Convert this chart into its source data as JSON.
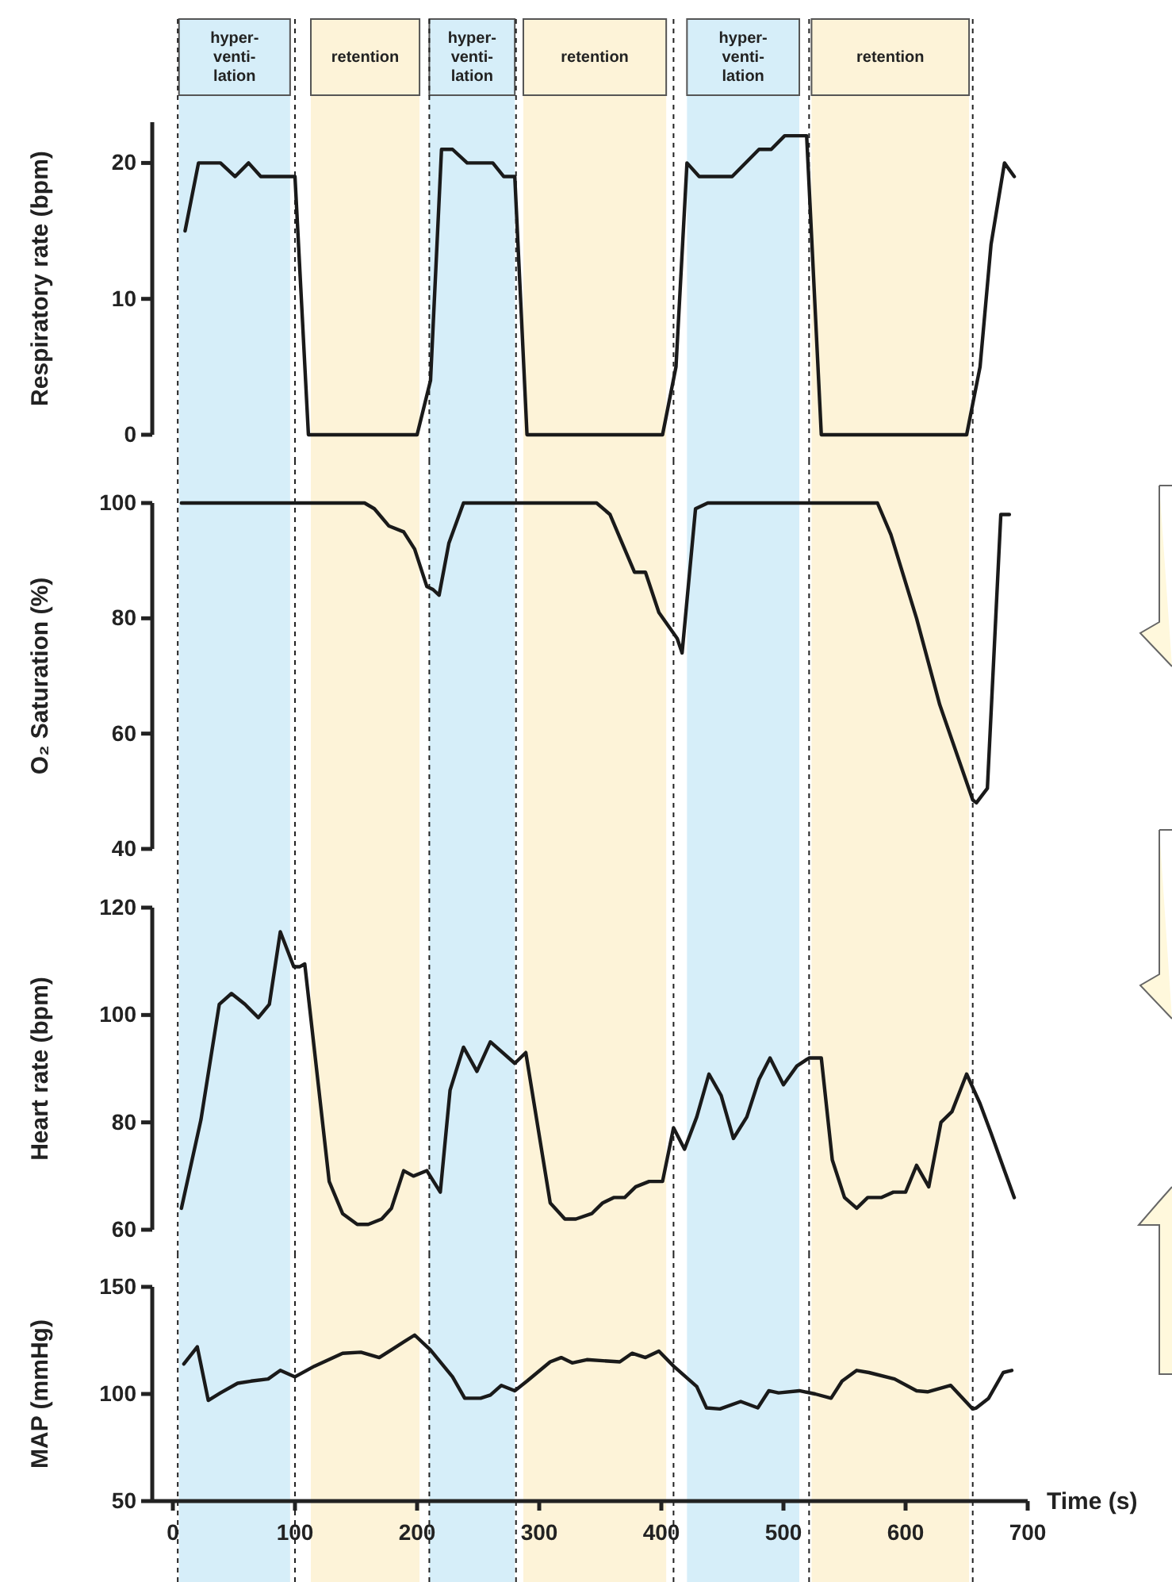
{
  "chart_data": [
    {
      "type": "line",
      "ylabel": "Respiratory rate (bpm)",
      "xlim": [
        0,
        700
      ],
      "ylim": [
        0,
        23
      ],
      "yticks": [
        0,
        10,
        20
      ],
      "tick_labels": "y",
      "grid": false,
      "series": [
        {
          "color": "#1a1a1a",
          "x": [
            10,
            21,
            39,
            51,
            62,
            72,
            100,
            111,
            200,
            211,
            220,
            229,
            241,
            262,
            271,
            280,
            290,
            401,
            412,
            421,
            431,
            458,
            480,
            490,
            501,
            519,
            531,
            650,
            661,
            670,
            681,
            689
          ],
          "values": [
            15,
            20,
            20,
            19,
            20,
            19,
            19,
            0,
            0,
            4,
            21,
            21,
            20,
            20,
            19,
            19,
            0,
            0,
            5,
            20,
            19,
            19,
            21,
            21,
            22,
            22,
            0,
            0,
            5,
            14,
            20,
            19
          ]
        }
      ],
      "bands": [
        {
          "axis": "x",
          "from": 5,
          "to": 96,
          "label": "hyper-venti-lation",
          "color": "#d6eef9"
        },
        {
          "axis": "x",
          "from": 113,
          "to": 202,
          "label": "retention",
          "color": "#fdf3d8"
        },
        {
          "axis": "x",
          "from": 210,
          "to": 280,
          "label": "hyper-venti-lation",
          "color": "#d6eef9"
        },
        {
          "axis": "x",
          "from": 287,
          "to": 404,
          "label": "retention",
          "color": "#fdf3d8"
        },
        {
          "axis": "x",
          "from": 421,
          "to": 513,
          "label": "hyper-venti-lation",
          "color": "#d6eef9"
        },
        {
          "axis": "x",
          "from": 523,
          "to": 652,
          "label": "retention",
          "color": "#fdf3d8"
        }
      ],
      "ref_lines": [
        {
          "axis": "x",
          "value": 4,
          "line_style": "dashed"
        },
        {
          "axis": "x",
          "value": 100,
          "line_style": "dashed"
        },
        {
          "axis": "x",
          "value": 210,
          "line_style": "dashed"
        },
        {
          "axis": "x",
          "value": 281,
          "line_style": "dashed"
        },
        {
          "axis": "x",
          "value": 410,
          "line_style": "dashed"
        },
        {
          "axis": "x",
          "value": 521,
          "line_style": "dashed"
        },
        {
          "axis": "x",
          "value": 655,
          "line_style": "dashed"
        }
      ]
    },
    {
      "type": "line",
      "ylabel": "O₂ Saturation (%)",
      "xlim": [
        0,
        700
      ],
      "ylim": [
        40,
        100
      ],
      "yticks": [
        40,
        60,
        80,
        100
      ],
      "tick_labels": "y",
      "grid": false,
      "series": [
        {
          "color": "#1a1a1a",
          "x": [
            7,
            157,
            165,
            177,
            189,
            198,
            208,
            213,
            218,
            226,
            238,
            347,
            358,
            378,
            387,
            398,
            413,
            417,
            428,
            438,
            577,
            588,
            609,
            628,
            655,
            658,
            667,
            678,
            685
          ],
          "values": [
            100,
            100,
            99,
            96,
            95,
            92,
            85.5,
            85,
            84,
            93,
            100,
            100,
            98,
            88,
            88,
            81,
            76.5,
            74,
            99,
            100,
            100,
            94.5,
            80,
            65,
            48.5,
            48,
            50.5,
            98,
            98
          ]
        }
      ],
      "bands": [
        {
          "axis": "x",
          "from": 5,
          "to": 96,
          "color": "#d6eef9"
        },
        {
          "axis": "x",
          "from": 113,
          "to": 202,
          "color": "#fdf3d8"
        },
        {
          "axis": "x",
          "from": 210,
          "to": 280,
          "color": "#d6eef9"
        },
        {
          "axis": "x",
          "from": 287,
          "to": 404,
          "color": "#fdf3d8"
        },
        {
          "axis": "x",
          "from": 421,
          "to": 513,
          "color": "#d6eef9"
        },
        {
          "axis": "x",
          "from": 523,
          "to": 652,
          "color": "#fdf3d8"
        }
      ],
      "ref_lines": [
        {
          "axis": "x",
          "value": 4,
          "line_style": "dashed"
        },
        {
          "axis": "x",
          "value": 100,
          "line_style": "dashed"
        },
        {
          "axis": "x",
          "value": 210,
          "line_style": "dashed"
        },
        {
          "axis": "x",
          "value": 281,
          "line_style": "dashed"
        },
        {
          "axis": "x",
          "value": 410,
          "line_style": "dashed"
        },
        {
          "axis": "x",
          "value": 521,
          "line_style": "dashed"
        },
        {
          "axis": "x",
          "value": 655,
          "line_style": "dashed"
        }
      ]
    },
    {
      "type": "line",
      "ylabel": "Heart rate (bpm)",
      "xlim": [
        0,
        700
      ],
      "ylim": [
        60,
        120
      ],
      "yticks": [
        60,
        80,
        100,
        120
      ],
      "tick_labels": "y",
      "grid": false,
      "series": [
        {
          "color": "#1a1a1a",
          "x": [
            7,
            23,
            38,
            48,
            59,
            70,
            79,
            88,
            99,
            104,
            108,
            128,
            139,
            151,
            160,
            171,
            179,
            189,
            197,
            208,
            219,
            227,
            238,
            249,
            260,
            280,
            289,
            309,
            321,
            330,
            343,
            352,
            361,
            370,
            379,
            390,
            401,
            410,
            419,
            429,
            439,
            449,
            459,
            470,
            480,
            489,
            500,
            511,
            521,
            531,
            540,
            550,
            560,
            569,
            580,
            590,
            600,
            609,
            619,
            629,
            638,
            650,
            661,
            670,
            681,
            689
          ],
          "values": [
            64,
            80.5,
            102,
            104,
            102,
            99.5,
            102,
            115.5,
            109,
            109,
            109.5,
            69,
            63,
            61,
            61,
            62,
            64,
            71,
            70,
            71,
            67,
            86,
            94,
            89.5,
            95,
            91,
            93,
            65,
            62,
            62,
            63,
            65,
            66,
            66,
            68,
            69,
            69,
            79,
            75,
            81,
            89,
            85,
            77,
            81,
            88,
            92,
            87,
            90.5,
            92,
            92,
            73,
            66,
            64,
            66,
            66,
            67,
            67,
            72,
            68,
            80,
            82,
            89,
            83.5,
            78,
            71,
            66
          ]
        }
      ],
      "bands": [
        {
          "axis": "x",
          "from": 5,
          "to": 96,
          "color": "#d6eef9"
        },
        {
          "axis": "x",
          "from": 113,
          "to": 202,
          "color": "#fdf3d8"
        },
        {
          "axis": "x",
          "from": 210,
          "to": 280,
          "color": "#d6eef9"
        },
        {
          "axis": "x",
          "from": 287,
          "to": 404,
          "color": "#fdf3d8"
        },
        {
          "axis": "x",
          "from": 421,
          "to": 513,
          "color": "#d6eef9"
        },
        {
          "axis": "x",
          "from": 523,
          "to": 652,
          "color": "#fdf3d8"
        }
      ],
      "ref_lines": [
        {
          "axis": "x",
          "value": 4,
          "line_style": "dashed"
        },
        {
          "axis": "x",
          "value": 100,
          "line_style": "dashed"
        },
        {
          "axis": "x",
          "value": 210,
          "line_style": "dashed"
        },
        {
          "axis": "x",
          "value": 281,
          "line_style": "dashed"
        },
        {
          "axis": "x",
          "value": 410,
          "line_style": "dashed"
        },
        {
          "axis": "x",
          "value": 521,
          "line_style": "dashed"
        },
        {
          "axis": "x",
          "value": 655,
          "line_style": "dashed"
        }
      ]
    },
    {
      "type": "line",
      "ylabel": "MAP (mmHg)",
      "xlabel": "Time (s)",
      "xlim": [
        0,
        700
      ],
      "xticks": [
        0,
        100,
        200,
        300,
        400,
        500,
        600,
        700
      ],
      "ylim": [
        50,
        150
      ],
      "yticks": [
        50,
        100,
        150
      ],
      "grid": false,
      "series": [
        {
          "color": "#1a1a1a",
          "x": [
            9,
            20,
            29,
            39,
            53,
            64,
            78,
            88,
            100,
            116,
            139,
            154,
            169,
            180,
            198,
            211,
            229,
            239,
            252,
            260,
            269,
            280,
            290,
            309,
            318,
            327,
            339,
            366,
            376,
            387,
            398,
            410,
            429,
            437,
            448,
            465,
            479,
            488,
            496,
            513,
            526,
            539,
            548,
            560,
            570,
            591,
            609,
            618,
            637,
            655,
            658,
            668,
            680,
            687
          ],
          "values": [
            114,
            122,
            97,
            100.5,
            105,
            106,
            107,
            111,
            108,
            113,
            119,
            119.5,
            117,
            121,
            127.5,
            120.5,
            108,
            98,
            98,
            99.5,
            104,
            101.5,
            106,
            115,
            117,
            114.5,
            116,
            115,
            119,
            117,
            120,
            113,
            103.5,
            93.5,
            93,
            96.5,
            93.5,
            101.5,
            100.5,
            101.5,
            100,
            98,
            106,
            111,
            110,
            107,
            101.5,
            101,
            104,
            93,
            93.5,
            98,
            110,
            111
          ]
        }
      ],
      "bands": [
        {
          "axis": "x",
          "from": 5,
          "to": 96,
          "color": "#d6eef9"
        },
        {
          "axis": "x",
          "from": 113,
          "to": 202,
          "color": "#fdf3d8"
        },
        {
          "axis": "x",
          "from": 210,
          "to": 280,
          "color": "#d6eef9"
        },
        {
          "axis": "x",
          "from": 287,
          "to": 404,
          "color": "#fdf3d8"
        },
        {
          "axis": "x",
          "from": 421,
          "to": 513,
          "color": "#d6eef9"
        },
        {
          "axis": "x",
          "from": 523,
          "to": 652,
          "color": "#fdf3d8"
        }
      ],
      "ref_lines": [
        {
          "axis": "x",
          "value": 4,
          "line_style": "dashed"
        },
        {
          "axis": "x",
          "value": 100,
          "line_style": "dashed"
        },
        {
          "axis": "x",
          "value": 210,
          "line_style": "dashed"
        },
        {
          "axis": "x",
          "value": 281,
          "line_style": "dashed"
        },
        {
          "axis": "x",
          "value": 410,
          "line_style": "dashed"
        },
        {
          "axis": "x",
          "value": 521,
          "line_style": "dashed"
        },
        {
          "axis": "x",
          "value": 655,
          "line_style": "dashed"
        }
      ]
    }
  ]
}
